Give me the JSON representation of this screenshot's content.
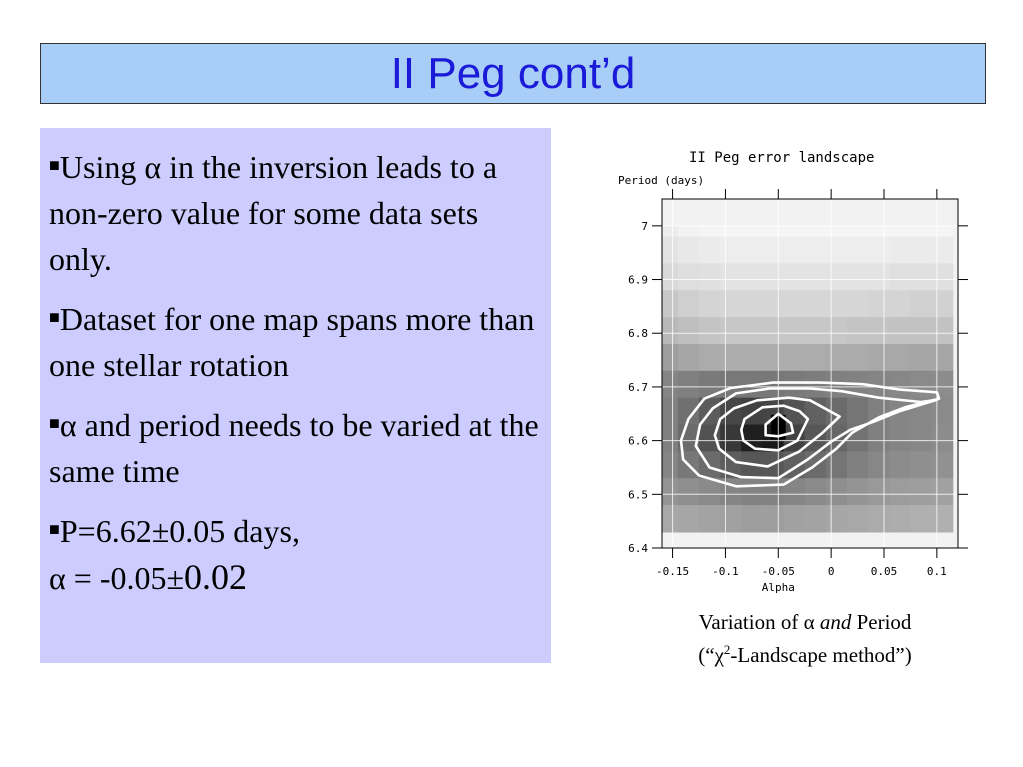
{
  "title": "II Peg cont’d",
  "bullets": [
    {
      "text": "Using α in the inversion leads to a non-zero value for some data sets only."
    },
    {
      "text": "Dataset for one map spans more than one stellar rotation"
    },
    {
      "text": "α and period needs to be varied at the same time"
    },
    {
      "line1": "P=6.62±0.05 days,",
      "line2_a": "α = -0.05±",
      "line2_b": "0.02"
    }
  ],
  "caption": {
    "line1_pre": "Variation of α ",
    "line1_em": "and",
    "line1_post": " Period",
    "line2_pre": "(“χ",
    "line2_sup": "2",
    "line2_post": "-Landscape method”)"
  },
  "chart_data": {
    "type": "heatmap",
    "title": "II Peg error landscape",
    "xlabel": "Alpha",
    "ylabel": "Period (days)",
    "xlim": [
      -0.16,
      0.12
    ],
    "ylim": [
      6.4,
      7.05
    ],
    "x_ticks": [
      "-0.15",
      "-0.1",
      "-0.05",
      "0",
      "0.05",
      "0.1"
    ],
    "x_tick_values": [
      -0.15,
      -0.1,
      -0.05,
      0,
      0.05,
      0.1
    ],
    "y_ticks": [
      "7",
      "6.9",
      "6.8",
      "6.7",
      "6.6",
      "6.5",
      "6.4"
    ],
    "y_tick_values": [
      7.0,
      6.9,
      6.8,
      6.7,
      6.6,
      6.5,
      6.4
    ],
    "grayscale_rows": [
      {
        "p_from": 6.98,
        "p_to": 7.0,
        "values": [
          0.93,
          0.95,
          0.96,
          0.96,
          0.96,
          0.96,
          0.96,
          0.96,
          0.96,
          0.96,
          0.96,
          0.96,
          0.96,
          0.96
        ]
      },
      {
        "p_from": 6.93,
        "p_to": 6.98,
        "values": [
          0.89,
          0.91,
          0.92,
          0.93,
          0.93,
          0.93,
          0.93,
          0.93,
          0.93,
          0.93,
          0.93,
          0.92,
          0.92,
          0.92
        ]
      },
      {
        "p_from": 6.88,
        "p_to": 6.93,
        "values": [
          0.85,
          0.87,
          0.88,
          0.89,
          0.89,
          0.89,
          0.89,
          0.89,
          0.89,
          0.89,
          0.89,
          0.88,
          0.88,
          0.88
        ]
      },
      {
        "p_from": 6.83,
        "p_to": 6.88,
        "values": [
          0.78,
          0.81,
          0.83,
          0.84,
          0.84,
          0.84,
          0.84,
          0.84,
          0.84,
          0.84,
          0.83,
          0.83,
          0.82,
          0.82
        ]
      },
      {
        "p_from": 6.78,
        "p_to": 6.83,
        "values": [
          0.72,
          0.75,
          0.77,
          0.78,
          0.78,
          0.78,
          0.78,
          0.78,
          0.78,
          0.77,
          0.77,
          0.76,
          0.76,
          0.76
        ]
      },
      {
        "p_from": 6.73,
        "p_to": 6.78,
        "values": [
          0.62,
          0.65,
          0.67,
          0.68,
          0.68,
          0.68,
          0.68,
          0.68,
          0.67,
          0.67,
          0.66,
          0.66,
          0.65,
          0.65
        ]
      },
      {
        "p_from": 6.68,
        "p_to": 6.73,
        "values": [
          0.52,
          0.5,
          0.48,
          0.47,
          0.47,
          0.47,
          0.48,
          0.49,
          0.5,
          0.51,
          0.52,
          0.53,
          0.54,
          0.55
        ]
      },
      {
        "p_from": 6.63,
        "p_to": 6.68,
        "values": [
          0.5,
          0.44,
          0.36,
          0.28,
          0.26,
          0.27,
          0.33,
          0.38,
          0.42,
          0.46,
          0.5,
          0.52,
          0.53,
          0.54
        ]
      },
      {
        "p_from": 6.58,
        "p_to": 6.63,
        "values": [
          0.5,
          0.42,
          0.32,
          0.22,
          0.12,
          0.1,
          0.26,
          0.34,
          0.4,
          0.45,
          0.5,
          0.52,
          0.53,
          0.55
        ]
      },
      {
        "p_from": 6.53,
        "p_to": 6.58,
        "values": [
          0.52,
          0.47,
          0.42,
          0.37,
          0.34,
          0.34,
          0.38,
          0.42,
          0.46,
          0.5,
          0.53,
          0.55,
          0.56,
          0.57
        ]
      },
      {
        "p_from": 6.48,
        "p_to": 6.53,
        "values": [
          0.58,
          0.56,
          0.54,
          0.52,
          0.51,
          0.51,
          0.52,
          0.54,
          0.56,
          0.58,
          0.6,
          0.61,
          0.62,
          0.63
        ]
      },
      {
        "p_from": 6.43,
        "p_to": 6.48,
        "values": [
          0.66,
          0.65,
          0.64,
          0.63,
          0.62,
          0.62,
          0.63,
          0.64,
          0.65,
          0.66,
          0.67,
          0.68,
          0.69,
          0.69
        ]
      }
    ],
    "grid_alpha_from": -0.165,
    "grid_alpha_to": 0.115,
    "minimum": {
      "alpha": -0.05,
      "period": 6.62
    },
    "contours": [
      {
        "name": "innermost",
        "points": [
          [
            -0.062,
            6.63
          ],
          [
            -0.05,
            6.65
          ],
          [
            -0.038,
            6.632
          ],
          [
            -0.036,
            6.615
          ],
          [
            -0.05,
            6.608
          ],
          [
            -0.062,
            6.61
          ]
        ]
      },
      {
        "name": "second",
        "points": [
          [
            -0.085,
            6.62
          ],
          [
            -0.082,
            6.64
          ],
          [
            -0.065,
            6.662
          ],
          [
            -0.045,
            6.665
          ],
          [
            -0.03,
            6.655
          ],
          [
            -0.022,
            6.64
          ],
          [
            -0.032,
            6.6
          ],
          [
            -0.05,
            6.582
          ],
          [
            -0.072,
            6.585
          ],
          [
            -0.083,
            6.6
          ]
        ]
      },
      {
        "name": "third",
        "points": [
          [
            -0.11,
            6.61
          ],
          [
            -0.105,
            6.64
          ],
          [
            -0.092,
            6.66
          ],
          [
            -0.07,
            6.675
          ],
          [
            -0.04,
            6.68
          ],
          [
            -0.02,
            6.675
          ],
          [
            0.008,
            6.645
          ],
          [
            -0.008,
            6.615
          ],
          [
            -0.03,
            6.58
          ],
          [
            -0.06,
            6.552
          ],
          [
            -0.09,
            6.56
          ],
          [
            -0.106,
            6.585
          ]
        ]
      },
      {
        "name": "fourth",
        "points": [
          [
            -0.128,
            6.59
          ],
          [
            -0.124,
            6.63
          ],
          [
            -0.112,
            6.66
          ],
          [
            -0.09,
            6.688
          ],
          [
            -0.058,
            6.697
          ],
          [
            -0.02,
            6.697
          ],
          [
            0.01,
            6.692
          ],
          [
            0.045,
            6.68
          ],
          [
            0.085,
            6.672
          ],
          [
            0.1,
            6.676
          ],
          [
            0.065,
            6.655
          ],
          [
            0.04,
            6.635
          ],
          [
            0.018,
            6.62
          ],
          [
            0.0,
            6.598
          ],
          [
            -0.022,
            6.565
          ],
          [
            -0.05,
            6.53
          ],
          [
            -0.085,
            6.532
          ],
          [
            -0.115,
            6.55
          ]
        ]
      },
      {
        "name": "outer",
        "points": [
          [
            -0.142,
            6.6
          ],
          [
            -0.135,
            6.64
          ],
          [
            -0.12,
            6.678
          ],
          [
            -0.095,
            6.698
          ],
          [
            -0.055,
            6.708
          ],
          [
            -0.01,
            6.708
          ],
          [
            0.03,
            6.705
          ],
          [
            0.065,
            6.695
          ],
          [
            0.1,
            6.69
          ],
          [
            0.102,
            6.678
          ],
          [
            0.07,
            6.662
          ],
          [
            0.045,
            6.643
          ],
          [
            0.02,
            6.615
          ],
          [
            0.005,
            6.585
          ],
          [
            -0.018,
            6.55
          ],
          [
            -0.045,
            6.518
          ],
          [
            -0.09,
            6.515
          ],
          [
            -0.125,
            6.535
          ],
          [
            -0.14,
            6.565
          ]
        ]
      }
    ]
  }
}
